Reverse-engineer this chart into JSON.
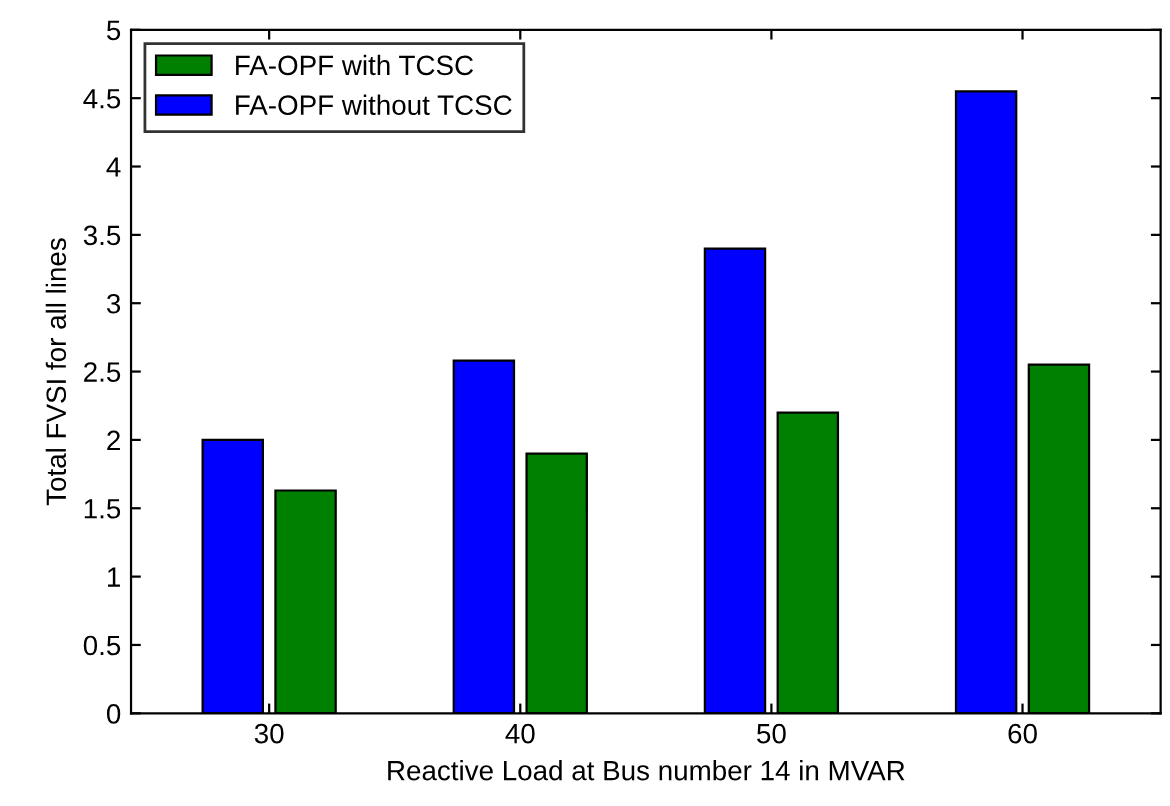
{
  "chart_data": {
    "type": "bar",
    "xlabel": "Reactive Load at Bus number 14 in MVAR",
    "ylabel": "Total FVSI for all lines",
    "categories": [
      "30",
      "40",
      "50",
      "60"
    ],
    "series": [
      {
        "name": "FA-OPF without TCSC",
        "color": "#0000ff",
        "values": [
          2.0,
          2.58,
          3.4,
          4.55
        ]
      },
      {
        "name": "FA-OPF with TCSC",
        "color": "#008000",
        "values": [
          1.63,
          1.9,
          2.2,
          2.55
        ]
      }
    ],
    "ylim": [
      0,
      5
    ],
    "yticks": [
      0,
      0.5,
      1,
      1.5,
      2,
      2.5,
      3,
      3.5,
      4,
      4.5,
      5
    ],
    "grid": false,
    "legend": "top left"
  }
}
